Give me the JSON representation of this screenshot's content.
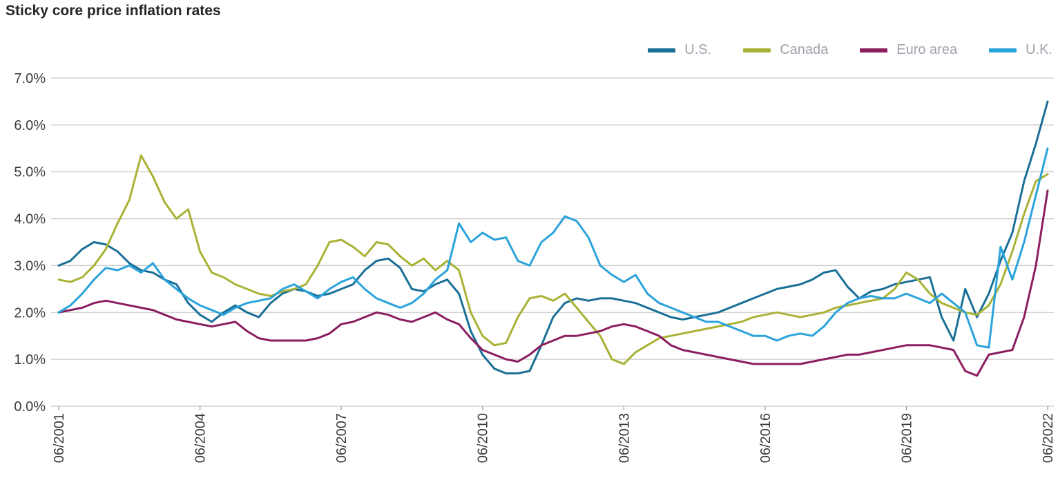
{
  "colors": {
    "background": "#ffffff",
    "grid": "#cbcbcb",
    "axis_text": "#3c3c3c",
    "tick_mark": "#9a9a9a",
    "legend_text": "#a1a1ae",
    "title_text": "#262626"
  },
  "chart_data": {
    "type": "line",
    "title": "Sticky core price inflation rates",
    "xlabel": "",
    "ylabel": "",
    "unit": "%",
    "grid": "horizontal",
    "legend_position": "top-right",
    "ylim": [
      0,
      7
    ],
    "y_ticks": [
      "0.0%",
      "1.0%",
      "2.0%",
      "3.0%",
      "4.0%",
      "5.0%",
      "6.0%",
      "7.0%"
    ],
    "x_ticks": [
      "06/2001",
      "06/2004",
      "06/2007",
      "06/2010",
      "06/2013",
      "06/2016",
      "06/2019",
      "06/2022"
    ],
    "x_tick_years": [
      2001.5,
      2004.5,
      2007.5,
      2010.5,
      2013.5,
      2016.5,
      2019.5,
      2022.5
    ],
    "x": [
      2001.5,
      2001.75,
      2002,
      2002.25,
      2002.5,
      2002.75,
      2003,
      2003.25,
      2003.5,
      2003.75,
      2004,
      2004.25,
      2004.5,
      2004.75,
      2005,
      2005.25,
      2005.5,
      2005.75,
      2006,
      2006.25,
      2006.5,
      2006.75,
      2007,
      2007.25,
      2007.5,
      2007.75,
      2008,
      2008.25,
      2008.5,
      2008.75,
      2009,
      2009.25,
      2009.5,
      2009.75,
      2010,
      2010.25,
      2010.5,
      2010.75,
      2011,
      2011.25,
      2011.5,
      2011.75,
      2012,
      2012.25,
      2012.5,
      2012.75,
      2013,
      2013.25,
      2013.5,
      2013.75,
      2014,
      2014.25,
      2014.5,
      2014.75,
      2015,
      2015.25,
      2015.5,
      2015.75,
      2016,
      2016.25,
      2016.5,
      2016.75,
      2017,
      2017.25,
      2017.5,
      2017.75,
      2018,
      2018.25,
      2018.5,
      2018.75,
      2019,
      2019.25,
      2019.5,
      2019.75,
      2020,
      2020.25,
      2020.5,
      2020.75,
      2021,
      2021.25,
      2021.5,
      2021.75,
      2022,
      2022.25,
      2022.5
    ],
    "series": [
      {
        "name": "U.S.",
        "color": "#1a6f97",
        "values": [
          3.0,
          3.1,
          3.35,
          3.5,
          3.45,
          3.3,
          3.05,
          2.9,
          2.85,
          2.7,
          2.6,
          2.2,
          1.95,
          1.8,
          2.0,
          2.15,
          2.0,
          1.9,
          2.2,
          2.4,
          2.5,
          2.45,
          2.35,
          2.4,
          2.5,
          2.6,
          2.9,
          3.1,
          3.15,
          2.95,
          2.5,
          2.45,
          2.6,
          2.7,
          2.4,
          1.6,
          1.1,
          0.8,
          0.7,
          0.7,
          0.75,
          1.3,
          1.9,
          2.2,
          2.3,
          2.25,
          2.3,
          2.3,
          2.25,
          2.2,
          2.1,
          2.0,
          1.9,
          1.85,
          1.9,
          1.95,
          2.0,
          2.1,
          2.2,
          2.3,
          2.4,
          2.5,
          2.55,
          2.6,
          2.7,
          2.85,
          2.9,
          2.55,
          2.3,
          2.45,
          2.5,
          2.6,
          2.65,
          2.7,
          2.75,
          1.9,
          1.4,
          2.5,
          1.9,
          2.4,
          3.1,
          3.7,
          4.8,
          5.6,
          6.5
        ]
      },
      {
        "name": "Canada",
        "color": "#a9b234",
        "values": [
          2.7,
          2.65,
          2.75,
          3.0,
          3.35,
          3.9,
          4.4,
          5.35,
          4.9,
          4.35,
          4.0,
          4.2,
          3.3,
          2.85,
          2.75,
          2.6,
          2.5,
          2.4,
          2.35,
          2.45,
          2.5,
          2.6,
          3.0,
          3.5,
          3.55,
          3.4,
          3.2,
          3.5,
          3.45,
          3.2,
          3.0,
          3.15,
          2.9,
          3.1,
          2.9,
          2.0,
          1.5,
          1.3,
          1.35,
          1.9,
          2.3,
          2.35,
          2.25,
          2.4,
          2.1,
          1.8,
          1.5,
          1.0,
          0.9,
          1.15,
          1.3,
          1.45,
          1.5,
          1.55,
          1.6,
          1.65,
          1.7,
          1.75,
          1.8,
          1.9,
          1.95,
          2.0,
          1.95,
          1.9,
          1.95,
          2.0,
          2.1,
          2.15,
          2.2,
          2.25,
          2.3,
          2.5,
          2.85,
          2.7,
          2.4,
          2.2,
          2.1,
          2.0,
          1.95,
          2.15,
          2.6,
          3.3,
          4.1,
          4.8,
          4.95
        ]
      },
      {
        "name": "Euro area",
        "color": "#8b1e5f",
        "values": [
          2.0,
          2.05,
          2.1,
          2.2,
          2.25,
          2.2,
          2.15,
          2.1,
          2.05,
          1.95,
          1.85,
          1.8,
          1.75,
          1.7,
          1.75,
          1.8,
          1.6,
          1.45,
          1.4,
          1.4,
          1.4,
          1.4,
          1.45,
          1.55,
          1.75,
          1.8,
          1.9,
          2.0,
          1.95,
          1.85,
          1.8,
          1.9,
          2.0,
          1.85,
          1.75,
          1.45,
          1.2,
          1.1,
          1.0,
          0.95,
          1.1,
          1.3,
          1.4,
          1.5,
          1.5,
          1.55,
          1.6,
          1.7,
          1.75,
          1.7,
          1.6,
          1.5,
          1.3,
          1.2,
          1.15,
          1.1,
          1.05,
          1.0,
          0.95,
          0.9,
          0.9,
          0.9,
          0.9,
          0.9,
          0.95,
          1.0,
          1.05,
          1.1,
          1.1,
          1.15,
          1.2,
          1.25,
          1.3,
          1.3,
          1.3,
          1.25,
          1.2,
          0.75,
          0.65,
          1.1,
          1.15,
          1.2,
          1.9,
          3.0,
          4.6
        ]
      },
      {
        "name": "U.K.",
        "color": "#2aa3db",
        "values": [
          2.0,
          2.15,
          2.4,
          2.7,
          2.95,
          2.9,
          3.0,
          2.85,
          3.05,
          2.7,
          2.5,
          2.3,
          2.15,
          2.05,
          1.95,
          2.1,
          2.2,
          2.25,
          2.3,
          2.5,
          2.6,
          2.45,
          2.3,
          2.5,
          2.65,
          2.75,
          2.5,
          2.3,
          2.2,
          2.1,
          2.2,
          2.4,
          2.7,
          2.9,
          3.9,
          3.5,
          3.7,
          3.55,
          3.6,
          3.1,
          3.0,
          3.5,
          3.7,
          4.05,
          3.95,
          3.6,
          3.0,
          2.8,
          2.65,
          2.8,
          2.4,
          2.2,
          2.1,
          2.0,
          1.9,
          1.8,
          1.8,
          1.7,
          1.6,
          1.5,
          1.5,
          1.4,
          1.5,
          1.55,
          1.5,
          1.7,
          2.0,
          2.2,
          2.3,
          2.35,
          2.3,
          2.3,
          2.4,
          2.3,
          2.2,
          2.4,
          2.2,
          2.0,
          1.3,
          1.25,
          3.4,
          2.7,
          3.5,
          4.5,
          5.5
        ]
      }
    ]
  }
}
